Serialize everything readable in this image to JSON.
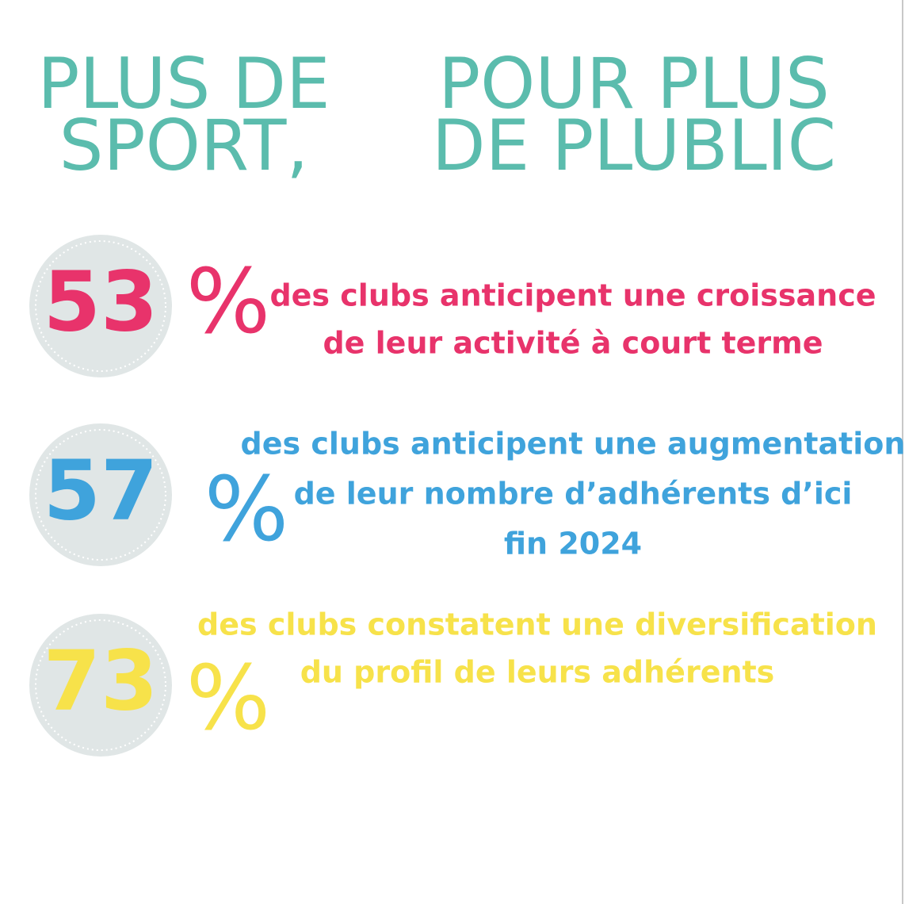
{
  "title": {
    "left": [
      "PLUS DE",
      "SPORT,"
    ],
    "right": [
      "POUR PLUS",
      "DE PLUBLIC"
    ]
  },
  "stats": [
    {
      "value": 53,
      "symbol": "%",
      "color": "#e8336b",
      "text": [
        "des clubs anticipent une croissance",
        "de leur activité à court terme"
      ]
    },
    {
      "value": 57,
      "symbol": "%",
      "color": "#3fa3dc",
      "text": [
        "des clubs anticipent une augmentation",
        "de leur nombre d’adhérents d’ici",
        "fin 2024"
      ]
    },
    {
      "value": 73,
      "symbol": "%",
      "color": "#f7e24a",
      "text": [
        "des clubs constatent une diversification",
        "du profil de leurs adhérents"
      ]
    }
  ]
}
